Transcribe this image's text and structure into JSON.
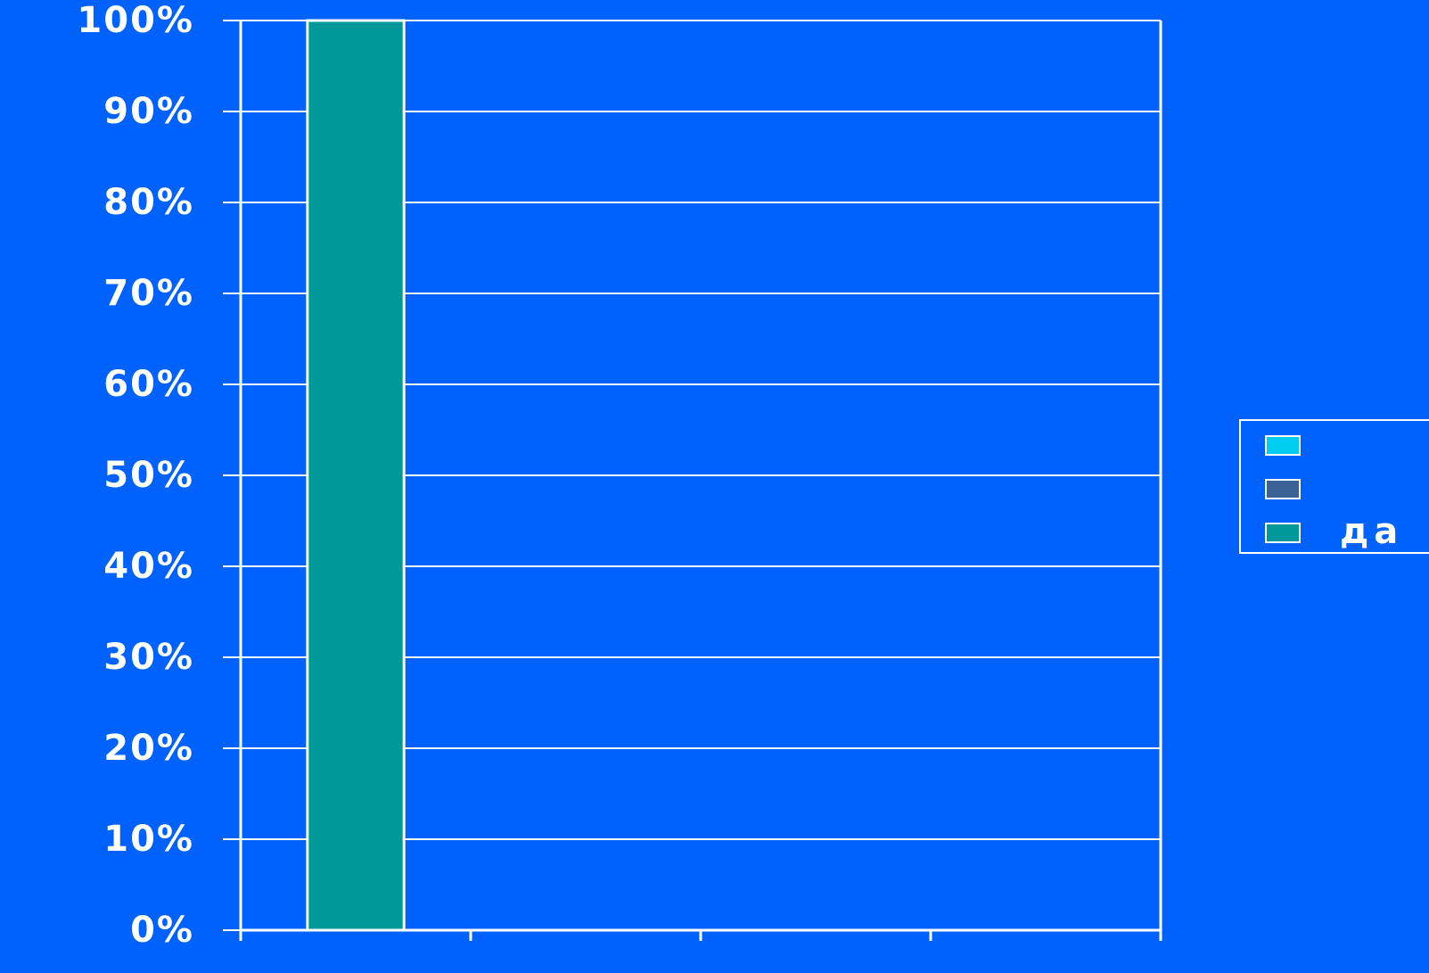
{
  "chart_data": {
    "type": "bar",
    "stacked": true,
    "categories": [
      "",
      "",
      "",
      ""
    ],
    "series": [
      {
        "name": "",
        "color": "#00ccf0",
        "values": [
          0,
          0,
          0,
          0
        ]
      },
      {
        "name": "",
        "color": "#3a6296",
        "values": [
          0,
          0,
          0,
          0
        ]
      },
      {
        "name": "да",
        "color": "#009999",
        "values": [
          100,
          0,
          0,
          0
        ]
      }
    ],
    "y_ticks": [
      "0%",
      "10%",
      "20%",
      "30%",
      "40%",
      "50%",
      "60%",
      "70%",
      "80%",
      "90%",
      "100%"
    ],
    "ylim": [
      0,
      100
    ],
    "grid": true,
    "legend_position": "right",
    "colors": {
      "background": "#0062fe",
      "grid": "#ffffff",
      "text": "#ffffff"
    }
  }
}
